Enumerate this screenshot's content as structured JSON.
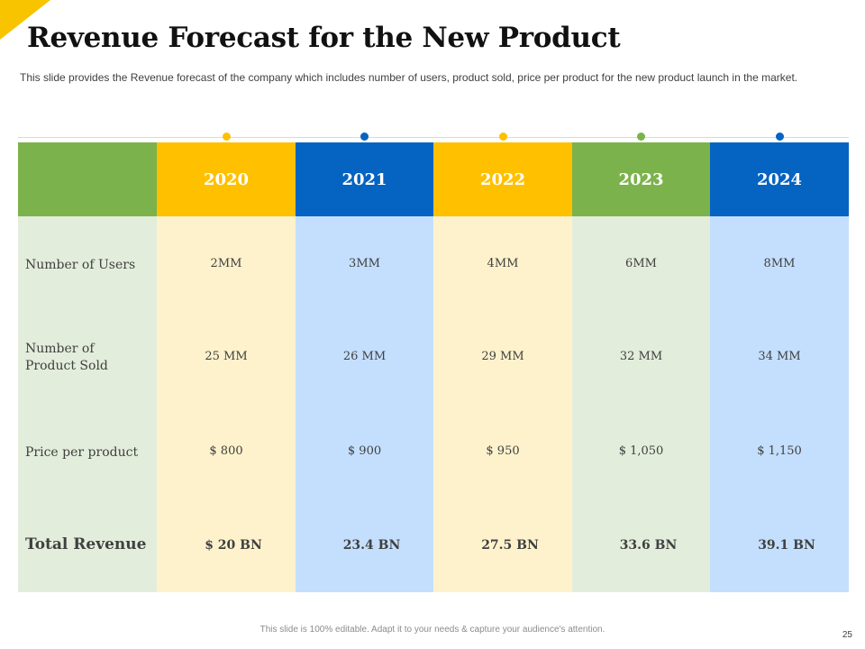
{
  "title": "Revenue Forecast for the New Product",
  "subtitle": "This slide provides the Revenue forecast of the company which includes number of users, product sold, price per product for the new product launch in the market.",
  "table": {
    "row_labels": [
      "Number of Users",
      "Number of Product Sold",
      "Price per product",
      "Total Revenue"
    ],
    "columns": [
      {
        "year": "2020",
        "color": "#ffc000",
        "tint": "#fef2cc",
        "values": [
          "2MM",
          "25 MM",
          "$ 800",
          "$ 20 BN"
        ]
      },
      {
        "year": "2021",
        "color": "#0563c1",
        "tint": "#c4dffd",
        "values": [
          "3MM",
          "26 MM",
          "$ 900",
          "23.4 BN"
        ]
      },
      {
        "year": "2022",
        "color": "#ffc000",
        "tint": "#fef2cc",
        "values": [
          "4MM",
          "29 MM",
          "$ 950",
          "27.5 BN"
        ]
      },
      {
        "year": "2023",
        "color": "#7cb24b",
        "tint": "#e3eddb",
        "values": [
          "6MM",
          "32 MM",
          "$ 1,050",
          "33.6 BN"
        ]
      },
      {
        "year": "2024",
        "color": "#0563c1",
        "tint": "#c4dffd",
        "values": [
          "8MM",
          "34 MM",
          "$ 1,150",
          "39.1 BN"
        ]
      }
    ],
    "label_column_color": "#7cb24b",
    "label_column_tint": "#e3eddb"
  },
  "footer": "This slide is 100% editable. Adapt it to your needs & capture your audience's attention.",
  "page_number": "25"
}
